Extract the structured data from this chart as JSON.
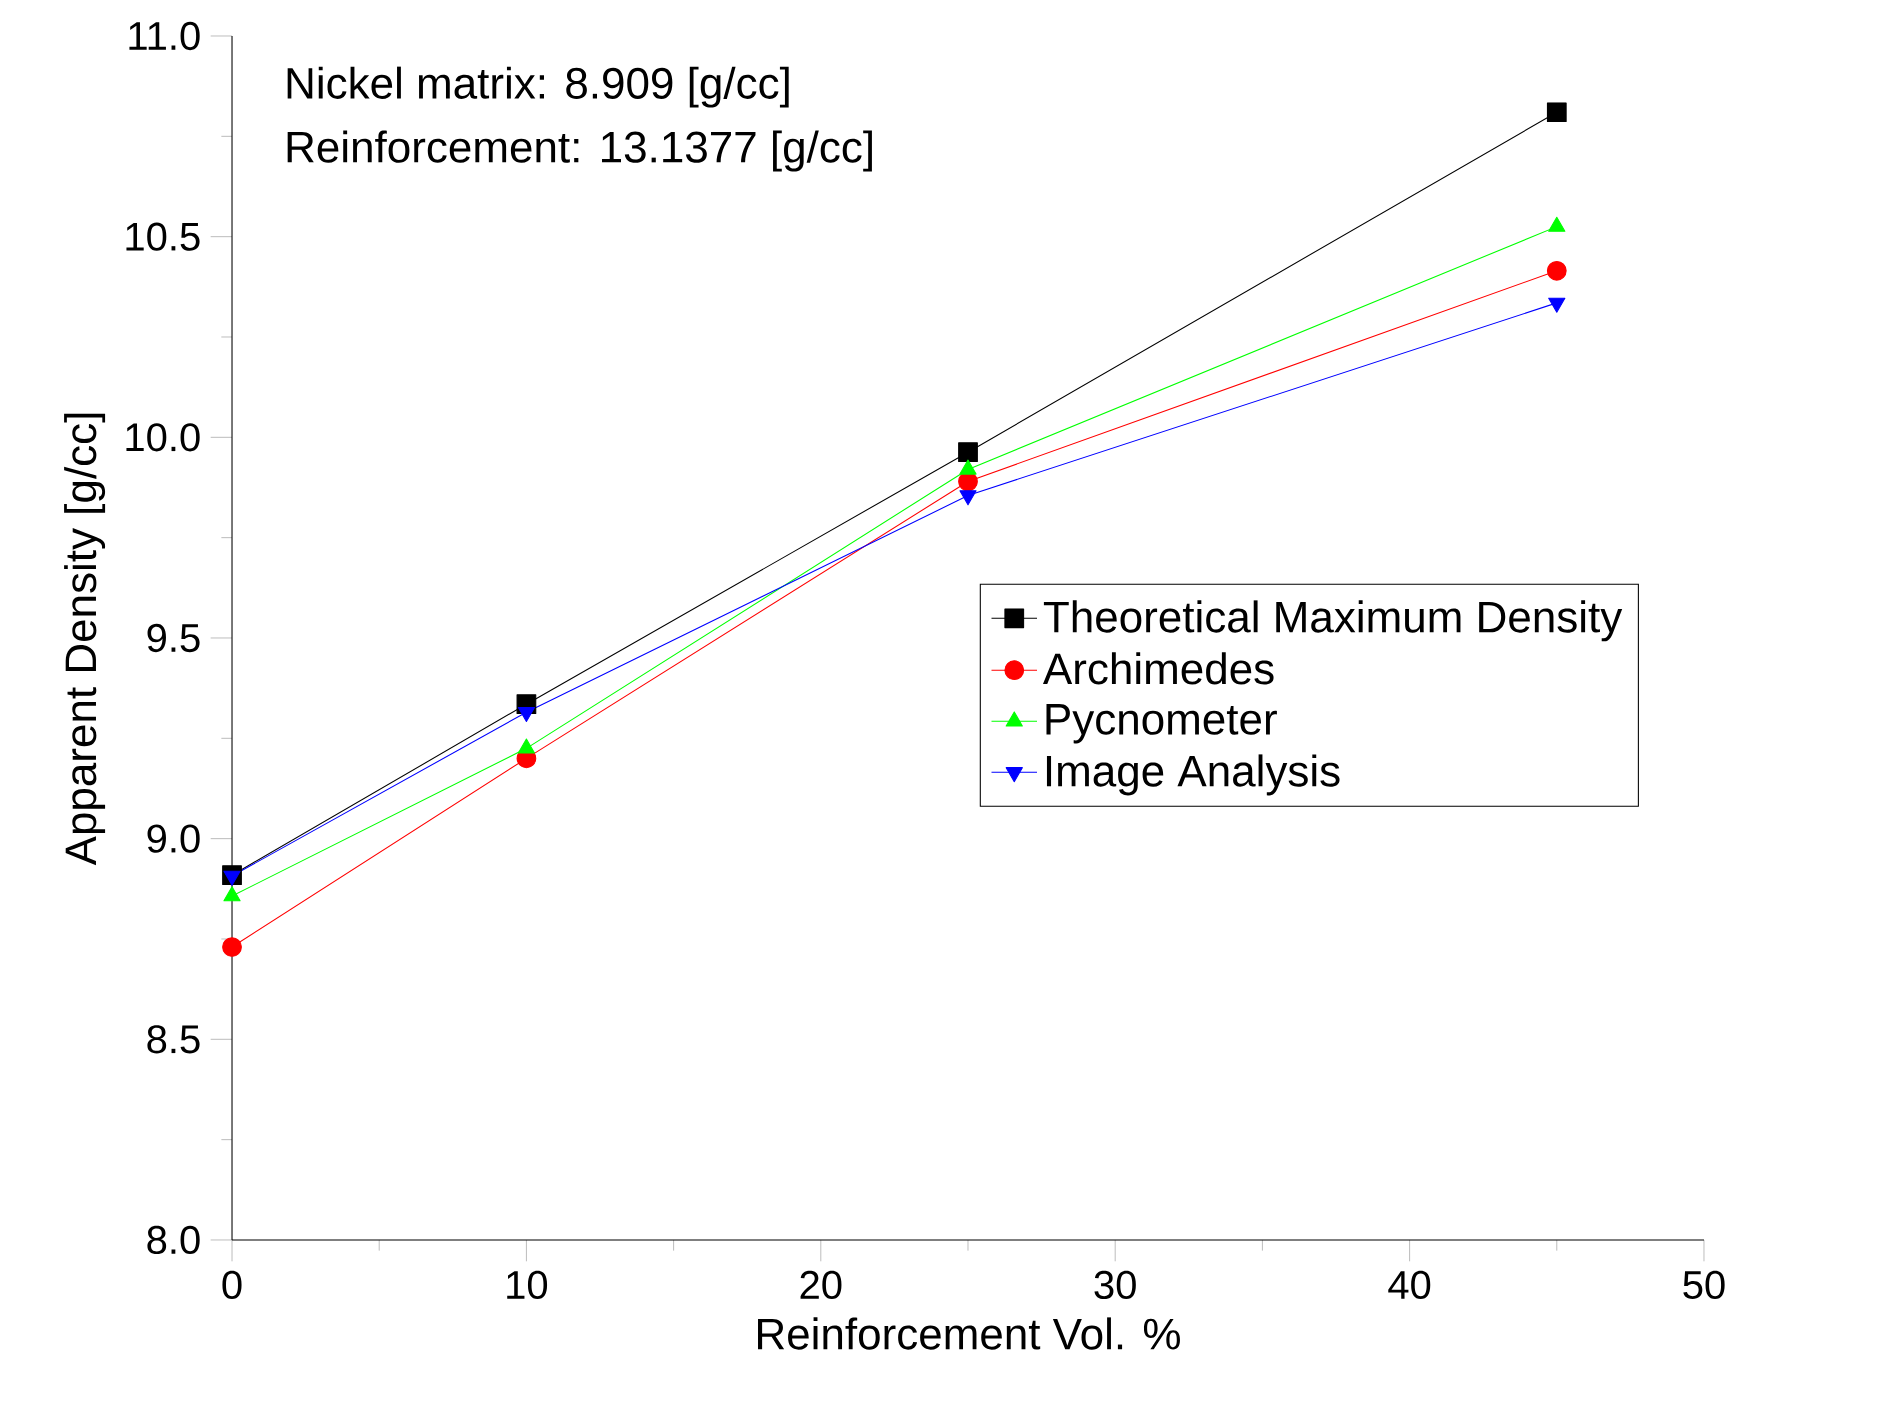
{
  "chart_data": {
    "type": "line",
    "xlabel": "Reinforcement Vol. %",
    "ylabel": "Apparent Density [g/cc]",
    "annotations": [
      "Nickel matrix:  8.909 [g/cc]",
      "Reinforcement:  13.1377 [g/cc]"
    ],
    "x": [
      0,
      10,
      25,
      45
    ],
    "series": [
      {
        "name": "Theoretical Maximum Density",
        "color": "#000000",
        "marker": "square",
        "values": [
          8.909,
          9.335,
          9.963,
          10.81
        ]
      },
      {
        "name": "Archimedes",
        "color": "#ff0000",
        "marker": "circle",
        "values": [
          8.73,
          9.2,
          9.89,
          10.415
        ]
      },
      {
        "name": "Pycnometer",
        "color": "#00ff00",
        "marker": "triangle",
        "values": [
          8.857,
          9.225,
          9.92,
          10.525
        ]
      },
      {
        "name": "Image Analysis",
        "color": "#0000ff",
        "marker": "triangle-down",
        "values": [
          8.907,
          9.315,
          9.855,
          10.335
        ]
      }
    ],
    "xlim": [
      0,
      50
    ],
    "xticks": [
      0,
      10,
      20,
      30,
      40,
      50
    ],
    "ylim": [
      8.0,
      11.0
    ],
    "yticks": [
      {
        "value": 8.0,
        "label": "8.0"
      },
      {
        "value": 8.5,
        "label": "8.5"
      },
      {
        "value": 9.0,
        "label": "9.0"
      },
      {
        "value": 9.5,
        "label": "9.5"
      },
      {
        "value": 10.0,
        "label": "10.0"
      },
      {
        "value": 10.5,
        "label": "10.5"
      },
      {
        "value": 11.0,
        "label": "11.0"
      }
    ],
    "grid": false,
    "legend": "right",
    "line_style": "solid"
  }
}
